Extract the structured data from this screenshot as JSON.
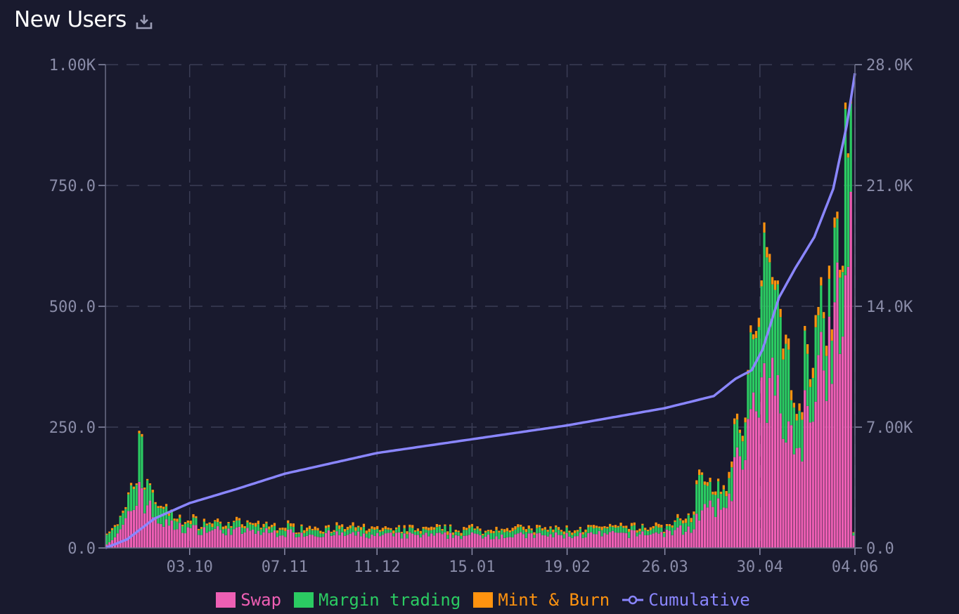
{
  "header": {
    "title": "New Users",
    "download_icon": "download-icon"
  },
  "colors": {
    "background": "#191a2e",
    "swap": "#ee5fb4",
    "margin": "#2bcb62",
    "mint": "#ff930f",
    "cumulative": "#8a86ff",
    "axis_text": "#8a8ca8",
    "grid": "#3b3d55"
  },
  "chart_data": {
    "type": "bar",
    "stacked": true,
    "title": "New Users",
    "x_start": "2023-09-02",
    "x_end": "2024-06-04",
    "x_ticks": [
      "03.10",
      "07.11",
      "11.12",
      "15.01",
      "19.02",
      "26.03",
      "30.04",
      "04.06"
    ],
    "y_left": {
      "range": [
        0,
        1000
      ],
      "ticks": [
        "0.0",
        "250.0",
        "500.0",
        "750.0",
        "1.00K"
      ]
    },
    "y_right": {
      "range": [
        0,
        28000
      ],
      "ticks": [
        "0.0",
        "7.00K",
        "14.0K",
        "21.0K",
        "28.0K"
      ]
    },
    "grid": true,
    "legend_position": "bottom",
    "series": [
      {
        "name": "Swap",
        "axis": "left",
        "type": "bar",
        "anchors": [
          [
            "2023-09-02",
            10
          ],
          [
            "2023-09-06",
            25
          ],
          [
            "2023-09-10",
            60
          ],
          [
            "2023-09-13",
            95
          ],
          [
            "2023-09-14",
            140
          ],
          [
            "2023-09-16",
            95
          ],
          [
            "2023-09-20",
            60
          ],
          [
            "2023-09-25",
            45
          ],
          [
            "2023-10-03",
            38
          ],
          [
            "2023-11-07",
            30
          ],
          [
            "2023-12-11",
            25
          ],
          [
            "2024-01-15",
            25
          ],
          [
            "2024-02-19",
            25
          ],
          [
            "2024-03-26",
            30
          ],
          [
            "2024-04-05",
            40
          ],
          [
            "2024-04-08",
            70
          ],
          [
            "2024-04-12",
            75
          ],
          [
            "2024-04-17",
            80
          ],
          [
            "2024-04-21",
            150
          ],
          [
            "2024-04-25",
            230
          ],
          [
            "2024-04-30",
            280
          ],
          [
            "2024-05-03",
            300
          ],
          [
            "2024-05-06",
            320
          ],
          [
            "2024-05-10",
            300
          ],
          [
            "2024-05-12",
            200
          ],
          [
            "2024-05-15",
            220
          ],
          [
            "2024-05-20",
            350
          ],
          [
            "2024-05-25",
            420
          ],
          [
            "2024-05-29",
            460
          ],
          [
            "2024-06-01",
            550
          ],
          [
            "2024-06-03",
            580
          ],
          [
            "2024-06-04",
            20
          ]
        ]
      },
      {
        "name": "Margin trading",
        "axis": "left",
        "type": "bar",
        "anchors": [
          [
            "2023-09-02",
            15
          ],
          [
            "2023-09-06",
            20
          ],
          [
            "2023-09-10",
            30
          ],
          [
            "2023-09-13",
            60
          ],
          [
            "2023-09-14",
            120
          ],
          [
            "2023-09-16",
            60
          ],
          [
            "2023-09-20",
            40
          ],
          [
            "2023-09-25",
            20
          ],
          [
            "2023-10-03",
            12
          ],
          [
            "2023-11-07",
            10
          ],
          [
            "2023-12-11",
            10
          ],
          [
            "2024-01-15",
            10
          ],
          [
            "2024-02-19",
            10
          ],
          [
            "2024-03-26",
            10
          ],
          [
            "2024-04-05",
            20
          ],
          [
            "2024-04-08",
            70
          ],
          [
            "2024-04-12",
            40
          ],
          [
            "2024-04-17",
            30
          ],
          [
            "2024-04-21",
            60
          ],
          [
            "2024-04-25",
            100
          ],
          [
            "2024-04-30",
            180
          ],
          [
            "2024-05-03",
            250
          ],
          [
            "2024-05-06",
            180
          ],
          [
            "2024-05-10",
            150
          ],
          [
            "2024-05-12",
            80
          ],
          [
            "2024-05-15",
            90
          ],
          [
            "2024-05-20",
            110
          ],
          [
            "2024-05-25",
            120
          ],
          [
            "2024-05-29",
            140
          ],
          [
            "2024-06-01",
            250
          ],
          [
            "2024-06-03",
            160
          ],
          [
            "2024-06-04",
            5
          ]
        ]
      },
      {
        "name": "Mint & Burn",
        "axis": "left",
        "type": "bar",
        "anchors": [
          [
            "2023-09-02",
            3
          ],
          [
            "2023-10-03",
            5
          ],
          [
            "2024-03-26",
            5
          ],
          [
            "2024-04-21",
            10
          ],
          [
            "2024-05-03",
            15
          ],
          [
            "2024-06-01",
            20
          ],
          [
            "2024-06-04",
            2
          ]
        ]
      },
      {
        "name": "Cumulative",
        "axis": "right",
        "type": "line",
        "anchors": [
          [
            "2023-09-02",
            0
          ],
          [
            "2023-09-10",
            500
          ],
          [
            "2023-09-20",
            1700
          ],
          [
            "2023-10-03",
            2600
          ],
          [
            "2023-10-20",
            3400
          ],
          [
            "2023-11-07",
            4300
          ],
          [
            "2023-12-11",
            5500
          ],
          [
            "2024-01-15",
            6300
          ],
          [
            "2024-02-19",
            7100
          ],
          [
            "2024-03-26",
            8100
          ],
          [
            "2024-04-13",
            8800
          ],
          [
            "2024-04-21",
            9800
          ],
          [
            "2024-04-27",
            10300
          ],
          [
            "2024-05-01",
            11500
          ],
          [
            "2024-05-07",
            14500
          ],
          [
            "2024-05-13",
            16200
          ],
          [
            "2024-05-20",
            18000
          ],
          [
            "2024-05-27",
            20800
          ],
          [
            "2024-06-01",
            24500
          ],
          [
            "2024-06-04",
            27500
          ]
        ]
      }
    ]
  },
  "legend": [
    {
      "label": "Swap",
      "color": "#ee5fb4",
      "kind": "box"
    },
    {
      "label": "Margin trading",
      "color": "#2bcb62",
      "kind": "box"
    },
    {
      "label": "Mint & Burn",
      "color": "#ff930f",
      "kind": "box"
    },
    {
      "label": "Cumulative",
      "color": "#8a86ff",
      "kind": "line"
    }
  ]
}
